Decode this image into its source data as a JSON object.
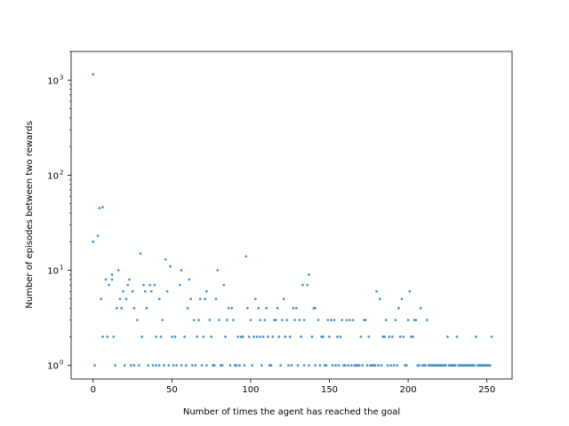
{
  "chart_data": {
    "type": "scatter",
    "title": "",
    "xlabel": "Number of times the agent has reached the goal",
    "ylabel": "Number of episodes between two rewards",
    "yscale": "log",
    "xlim": [
      -14,
      266
    ],
    "ylim": [
      0.72,
      2000
    ],
    "x_ticks": [
      0,
      50,
      100,
      150,
      200,
      250
    ],
    "y_ticks": [
      1,
      10,
      100,
      1000
    ],
    "y_tick_labels": [
      "10",
      "10",
      "10",
      "10"
    ],
    "y_tick_exponents": [
      "0",
      "1",
      "2",
      "3"
    ],
    "grid": false,
    "marker_color": "#1f77b4",
    "points": [
      [
        0,
        1150
      ],
      [
        0,
        20
      ],
      [
        1,
        1
      ],
      [
        3,
        23
      ],
      [
        4,
        45
      ],
      [
        5,
        5
      ],
      [
        6,
        2
      ],
      [
        6,
        46
      ],
      [
        8,
        8
      ],
      [
        9,
        2
      ],
      [
        10,
        7
      ],
      [
        12,
        8
      ],
      [
        12,
        9
      ],
      [
        13,
        2
      ],
      [
        14,
        1
      ],
      [
        15,
        4
      ],
      [
        16,
        10
      ],
      [
        17,
        5
      ],
      [
        18,
        4
      ],
      [
        19,
        6
      ],
      [
        20,
        1
      ],
      [
        21,
        5
      ],
      [
        22,
        7
      ],
      [
        23,
        8
      ],
      [
        24,
        1
      ],
      [
        25,
        6
      ],
      [
        26,
        4
      ],
      [
        26,
        1
      ],
      [
        28,
        3
      ],
      [
        29,
        1
      ],
      [
        30,
        15
      ],
      [
        31,
        2
      ],
      [
        32,
        7
      ],
      [
        33,
        6
      ],
      [
        34,
        4
      ],
      [
        35,
        1
      ],
      [
        36,
        7
      ],
      [
        37,
        6
      ],
      [
        38,
        1
      ],
      [
        39,
        7
      ],
      [
        40,
        2
      ],
      [
        40,
        1
      ],
      [
        42,
        5
      ],
      [
        42,
        1
      ],
      [
        43,
        2
      ],
      [
        44,
        3
      ],
      [
        45,
        1
      ],
      [
        46,
        13
      ],
      [
        47,
        6
      ],
      [
        48,
        1
      ],
      [
        49,
        11
      ],
      [
        50,
        2
      ],
      [
        51,
        1
      ],
      [
        52,
        2
      ],
      [
        53,
        1
      ],
      [
        55,
        7
      ],
      [
        56,
        10
      ],
      [
        56,
        1
      ],
      [
        58,
        2
      ],
      [
        59,
        1
      ],
      [
        60,
        4
      ],
      [
        61,
        8
      ],
      [
        62,
        5
      ],
      [
        63,
        1
      ],
      [
        64,
        3
      ],
      [
        65,
        1
      ],
      [
        66,
        2
      ],
      [
        67,
        3
      ],
      [
        68,
        5
      ],
      [
        69,
        1
      ],
      [
        70,
        2
      ],
      [
        71,
        5
      ],
      [
        72,
        6
      ],
      [
        72,
        1
      ],
      [
        74,
        3
      ],
      [
        75,
        2
      ],
      [
        76,
        1
      ],
      [
        77,
        1
      ],
      [
        78,
        5
      ],
      [
        79,
        10
      ],
      [
        80,
        3
      ],
      [
        81,
        1
      ],
      [
        82,
        1
      ],
      [
        83,
        7
      ],
      [
        84,
        2
      ],
      [
        85,
        3
      ],
      [
        86,
        4
      ],
      [
        87,
        1
      ],
      [
        88,
        4
      ],
      [
        89,
        3
      ],
      [
        90,
        1
      ],
      [
        91,
        1
      ],
      [
        92,
        2
      ],
      [
        93,
        1
      ],
      [
        94,
        2
      ],
      [
        95,
        2
      ],
      [
        96,
        1
      ],
      [
        97,
        14
      ],
      [
        98,
        4
      ],
      [
        99,
        2
      ],
      [
        100,
        3
      ],
      [
        101,
        1
      ],
      [
        102,
        2
      ],
      [
        103,
        5
      ],
      [
        104,
        2
      ],
      [
        105,
        4
      ],
      [
        106,
        3
      ],
      [
        106,
        2
      ],
      [
        107,
        1
      ],
      [
        108,
        2
      ],
      [
        109,
        3
      ],
      [
        110,
        4
      ],
      [
        111,
        2
      ],
      [
        112,
        1
      ],
      [
        113,
        1
      ],
      [
        114,
        2
      ],
      [
        115,
        3
      ],
      [
        116,
        3
      ],
      [
        117,
        4
      ],
      [
        118,
        2
      ],
      [
        119,
        1
      ],
      [
        120,
        3
      ],
      [
        121,
        5
      ],
      [
        122,
        2
      ],
      [
        123,
        3
      ],
      [
        124,
        1
      ],
      [
        125,
        2
      ],
      [
        126,
        1
      ],
      [
        127,
        4
      ],
      [
        128,
        3
      ],
      [
        129,
        4
      ],
      [
        130,
        1
      ],
      [
        131,
        3
      ],
      [
        132,
        2
      ],
      [
        133,
        7
      ],
      [
        134,
        3
      ],
      [
        134,
        1
      ],
      [
        136,
        7
      ],
      [
        137,
        9
      ],
      [
        137,
        1
      ],
      [
        139,
        2
      ],
      [
        140,
        4
      ],
      [
        141,
        4
      ],
      [
        141,
        1
      ],
      [
        143,
        3
      ],
      [
        144,
        1
      ],
      [
        145,
        2
      ],
      [
        146,
        2
      ],
      [
        147,
        1
      ],
      [
        148,
        1
      ],
      [
        149,
        3
      ],
      [
        150,
        2
      ],
      [
        151,
        3
      ],
      [
        152,
        1
      ],
      [
        153,
        3
      ],
      [
        154,
        1
      ],
      [
        155,
        2
      ],
      [
        156,
        1
      ],
      [
        157,
        2
      ],
      [
        158,
        3
      ],
      [
        159,
        1
      ],
      [
        160,
        1
      ],
      [
        161,
        3
      ],
      [
        162,
        1
      ],
      [
        163,
        3
      ],
      [
        164,
        1
      ],
      [
        165,
        3
      ],
      [
        166,
        1
      ],
      [
        167,
        1
      ],
      [
        168,
        1
      ],
      [
        169,
        1
      ],
      [
        170,
        2
      ],
      [
        171,
        1
      ],
      [
        172,
        3
      ],
      [
        173,
        3
      ],
      [
        174,
        1
      ],
      [
        175,
        2
      ],
      [
        176,
        1
      ],
      [
        177,
        1
      ],
      [
        178,
        1
      ],
      [
        179,
        1
      ],
      [
        180,
        6
      ],
      [
        181,
        1
      ],
      [
        182,
        5
      ],
      [
        183,
        1
      ],
      [
        184,
        2
      ],
      [
        185,
        2
      ],
      [
        186,
        3
      ],
      [
        187,
        1
      ],
      [
        188,
        2
      ],
      [
        189,
        1
      ],
      [
        190,
        2
      ],
      [
        191,
        1
      ],
      [
        192,
        3
      ],
      [
        193,
        1
      ],
      [
        194,
        4
      ],
      [
        195,
        2
      ],
      [
        196,
        5
      ],
      [
        197,
        2
      ],
      [
        198,
        1
      ],
      [
        199,
        1
      ],
      [
        200,
        3
      ],
      [
        201,
        6
      ],
      [
        202,
        2
      ],
      [
        203,
        2
      ],
      [
        204,
        3
      ],
      [
        205,
        3
      ],
      [
        206,
        1
      ],
      [
        207,
        1
      ],
      [
        208,
        4
      ],
      [
        209,
        1
      ],
      [
        210,
        1
      ],
      [
        211,
        1
      ],
      [
        212,
        3
      ],
      [
        213,
        1
      ],
      [
        214,
        1
      ],
      [
        215,
        1
      ],
      [
        216,
        1
      ],
      [
        217,
        1
      ],
      [
        218,
        1
      ],
      [
        219,
        1
      ],
      [
        220,
        1
      ],
      [
        221,
        1
      ],
      [
        222,
        1
      ],
      [
        223,
        1
      ],
      [
        224,
        1
      ],
      [
        225,
        2
      ],
      [
        226,
        1
      ],
      [
        227,
        1
      ],
      [
        228,
        1
      ],
      [
        229,
        1
      ],
      [
        230,
        1
      ],
      [
        231,
        2
      ],
      [
        232,
        1
      ],
      [
        233,
        1
      ],
      [
        234,
        1
      ],
      [
        235,
        1
      ],
      [
        236,
        1
      ],
      [
        237,
        1
      ],
      [
        238,
        1
      ],
      [
        239,
        1
      ],
      [
        240,
        1
      ],
      [
        241,
        1
      ],
      [
        242,
        1
      ],
      [
        243,
        2
      ],
      [
        244,
        1
      ],
      [
        245,
        1
      ],
      [
        246,
        1
      ],
      [
        247,
        1
      ],
      [
        248,
        1
      ],
      [
        249,
        1
      ],
      [
        250,
        1
      ],
      [
        251,
        1
      ],
      [
        252,
        1
      ],
      [
        253,
        2
      ]
    ]
  }
}
